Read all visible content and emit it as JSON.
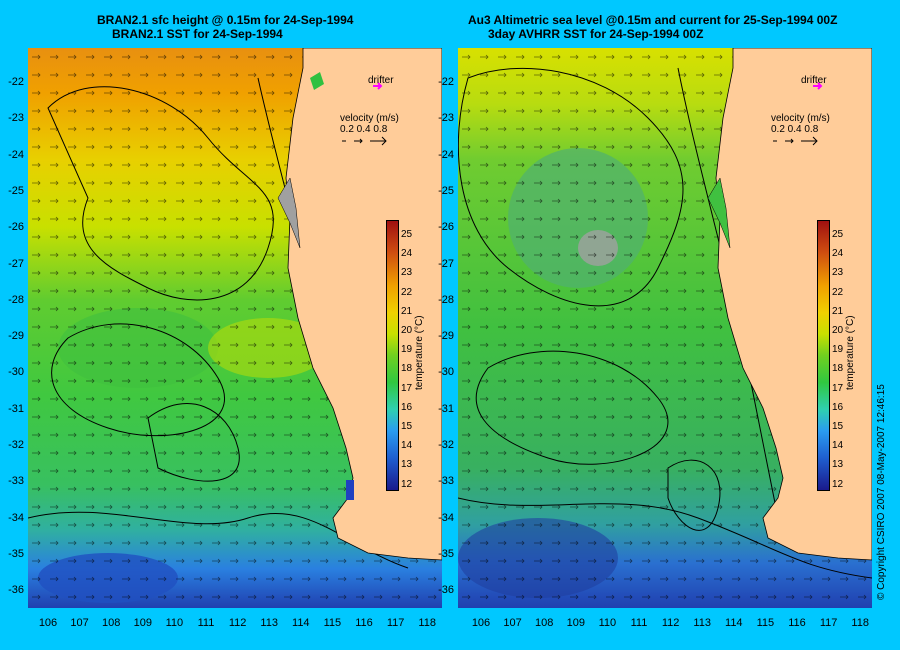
{
  "left_panel": {
    "title_line1": "BRAN2.1 sfc height @ 0.15m for 24-Sep-1994",
    "title_line2": "BRAN2.1 SST for 24-Sep-1994"
  },
  "right_panel": {
    "title_line1": "Au3 Altimetric sea level  @0.15m and current for 25-Sep-1994 00Z",
    "title_line2": "3day AVHRR SST for 24-Sep-1994 00Z"
  },
  "legend": {
    "drifter_label": "drifter",
    "velocity_label": "velocity (m/s)",
    "velocity_values": "0.2 0.4 0.8"
  },
  "colorbar": {
    "title": "temperature (°C)",
    "ticks": [
      "25",
      "24",
      "23",
      "22",
      "21",
      "20",
      "19",
      "18",
      "17",
      "16",
      "15",
      "14",
      "13",
      "12"
    ],
    "min": 11.5,
    "max": 25.5
  },
  "axes": {
    "lat_ticks": [
      "-22",
      "-23",
      "-24",
      "-25",
      "-26",
      "-27",
      "-28",
      "-29",
      "-30",
      "-31",
      "-32",
      "-33",
      "-34",
      "-35",
      "-36"
    ],
    "lon_ticks": [
      "106",
      "107",
      "108",
      "109",
      "110",
      "111",
      "112",
      "113",
      "114",
      "115",
      "116",
      "117",
      "118"
    ]
  },
  "copyright": "© Copyright CSIRO 2007    08-May-2007 12:46:15",
  "colors": {
    "background": "#00c8ff",
    "land": "#ffcc99",
    "drifter": "#ff00ff"
  }
}
